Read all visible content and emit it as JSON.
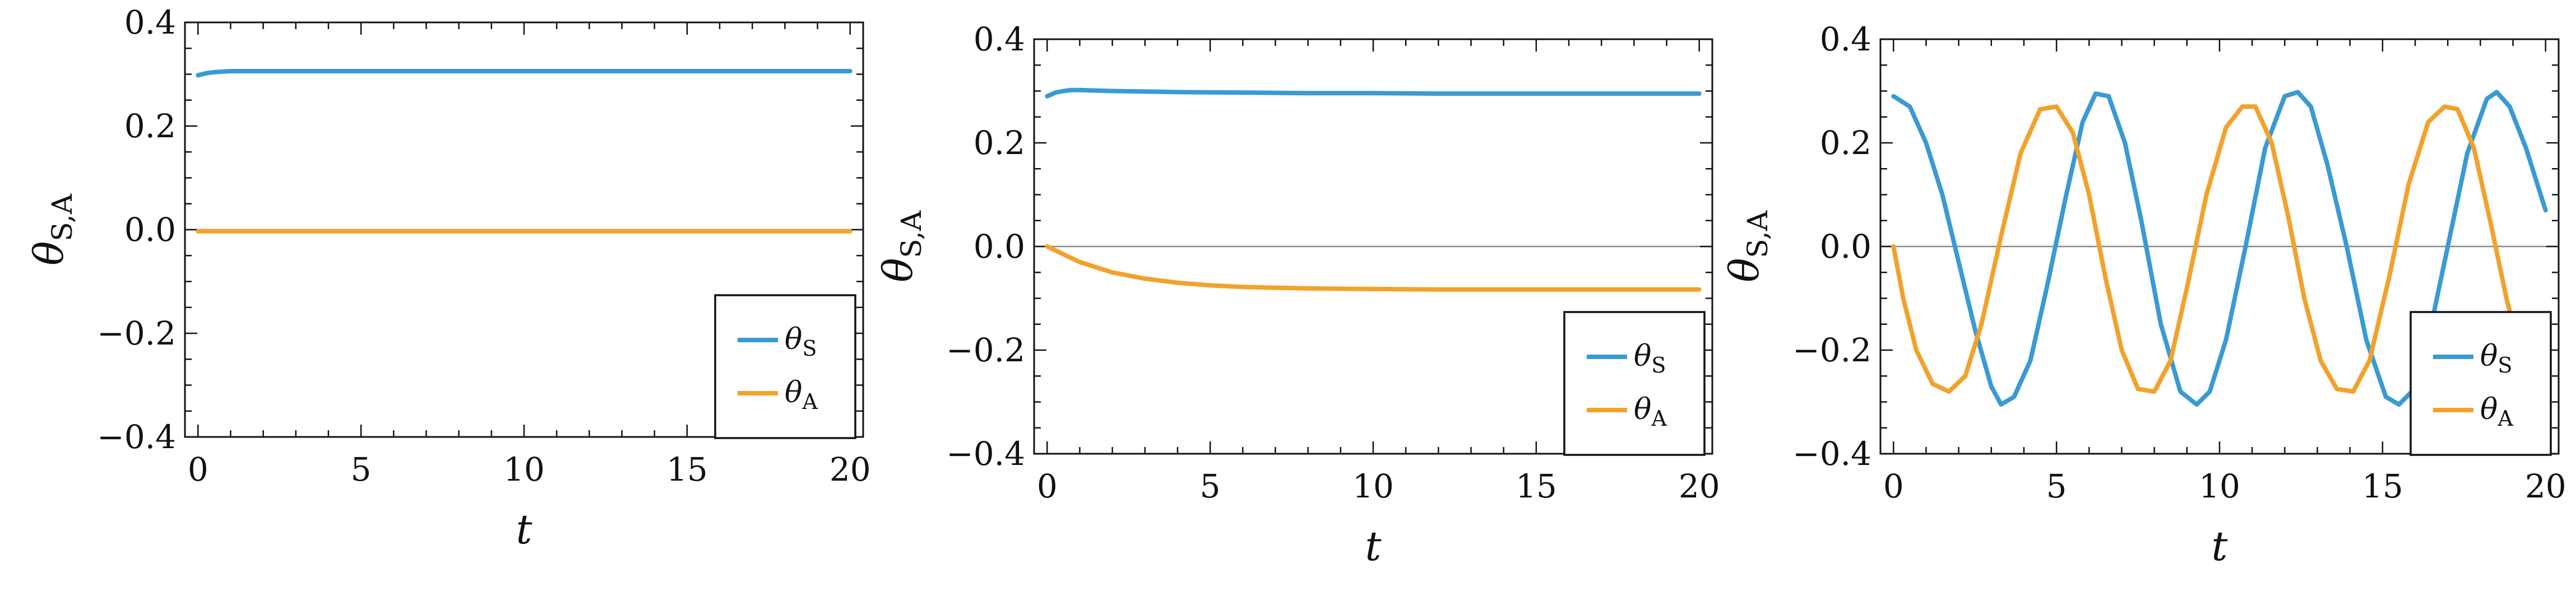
{
  "chart_data": [
    {
      "type": "line",
      "xlabel": "t",
      "ylabel": {
        "symbol": "θ",
        "subscript": "S,A"
      },
      "xlim": [
        0,
        20
      ],
      "ylim": [
        -0.4,
        0.4
      ],
      "xticks": [
        "0",
        "5",
        "10",
        "15",
        "20"
      ],
      "yticks": [
        "−0.4",
        "−0.2",
        "0.0",
        "0.2",
        "0.4"
      ],
      "legend_position": "bottom-right",
      "series": [
        {
          "name": {
            "symbol": "θ",
            "subscript": "S"
          },
          "color": "#3a9ad3",
          "x": [
            0,
            0.25,
            0.5,
            0.75,
            1,
            1.5,
            2,
            3,
            5,
            10,
            15,
            20
          ],
          "y": [
            0.298,
            0.302,
            0.304,
            0.305,
            0.306,
            0.306,
            0.306,
            0.306,
            0.306,
            0.306,
            0.306,
            0.306
          ]
        },
        {
          "name": {
            "symbol": "θ",
            "subscript": "A"
          },
          "color": "#f2a22c",
          "x": [
            0,
            5,
            10,
            15,
            20
          ],
          "y": [
            -0.003,
            -0.003,
            -0.003,
            -0.003,
            -0.003
          ]
        }
      ]
    },
    {
      "type": "line",
      "xlabel": "t",
      "ylabel": {
        "symbol": "θ",
        "subscript": "S,A"
      },
      "xlim": [
        0,
        20
      ],
      "ylim": [
        -0.4,
        0.4
      ],
      "xticks": [
        "0",
        "5",
        "10",
        "15",
        "20"
      ],
      "yticks": [
        "−0.4",
        "−0.2",
        "0.0",
        "0.2",
        "0.4"
      ],
      "legend_position": "bottom-right",
      "series": [
        {
          "name": {
            "symbol": "θ",
            "subscript": "S"
          },
          "color": "#3a9ad3",
          "x": [
            0,
            0.25,
            0.5,
            0.75,
            1,
            1.5,
            2,
            3,
            4,
            6,
            8,
            10,
            12,
            15,
            18,
            20
          ],
          "y": [
            0.29,
            0.297,
            0.3,
            0.302,
            0.302,
            0.301,
            0.3,
            0.299,
            0.298,
            0.297,
            0.296,
            0.296,
            0.295,
            0.295,
            0.295,
            0.295
          ]
        },
        {
          "name": {
            "symbol": "θ",
            "subscript": "A"
          },
          "color": "#f2a22c",
          "x": [
            0,
            0.5,
            1,
            2,
            3,
            4,
            5,
            6,
            8,
            10,
            12,
            15,
            20
          ],
          "y": [
            0,
            -0.015,
            -0.03,
            -0.05,
            -0.062,
            -0.07,
            -0.075,
            -0.078,
            -0.081,
            -0.082,
            -0.083,
            -0.083,
            -0.083
          ]
        }
      ]
    },
    {
      "type": "line",
      "xlabel": "t",
      "ylabel": {
        "symbol": "θ",
        "subscript": "S,A"
      },
      "xlim": [
        0,
        20
      ],
      "ylim": [
        -0.4,
        0.4
      ],
      "xticks": [
        "0",
        "5",
        "10",
        "15",
        "20"
      ],
      "yticks": [
        "−0.4",
        "−0.2",
        "0.0",
        "0.2",
        "0.4"
      ],
      "legend_position": "bottom-right",
      "series": [
        {
          "name": {
            "symbol": "θ",
            "subscript": "S"
          },
          "color": "#3a9ad3",
          "x": [
            0,
            0.5,
            1,
            1.5,
            2,
            2.5,
            3,
            3.3,
            3.7,
            4.2,
            4.7,
            5.3,
            5.8,
            6.2,
            6.6,
            7.1,
            7.6,
            8.2,
            8.8,
            9.3,
            9.7,
            10.2,
            10.8,
            11.4,
            12,
            12.4,
            12.8,
            13.3,
            13.9,
            14.5,
            15.1,
            15.5,
            15.9,
            16.4,
            17,
            17.6,
            18.2,
            18.5,
            18.9,
            19.4,
            20
          ],
          "y": [
            0.29,
            0.27,
            0.2,
            0.1,
            -0.03,
            -0.16,
            -0.27,
            -0.305,
            -0.29,
            -0.22,
            -0.08,
            0.1,
            0.24,
            0.295,
            0.29,
            0.2,
            0.05,
            -0.15,
            -0.28,
            -0.305,
            -0.28,
            -0.18,
            0.0,
            0.19,
            0.29,
            0.298,
            0.27,
            0.16,
            0.0,
            -0.18,
            -0.29,
            -0.305,
            -0.28,
            -0.18,
            0.0,
            0.18,
            0.285,
            0.298,
            0.27,
            0.19,
            0.07
          ]
        },
        {
          "name": {
            "symbol": "θ",
            "subscript": "A"
          },
          "color": "#f2a22c",
          "x": [
            0,
            0.3,
            0.7,
            1.2,
            1.7,
            2.2,
            2.7,
            3.3,
            3.9,
            4.5,
            5,
            5.5,
            6,
            6.5,
            7,
            7.5,
            8,
            8.5,
            9,
            9.6,
            10.2,
            10.7,
            11.1,
            11.6,
            12.1,
            12.6,
            13.1,
            13.6,
            14.1,
            14.6,
            15.2,
            15.8,
            16.4,
            16.9,
            17.3,
            17.8,
            18.3,
            18.8,
            19.2,
            19.6
          ],
          "y": [
            0,
            -0.1,
            -0.2,
            -0.265,
            -0.28,
            -0.25,
            -0.15,
            0.02,
            0.18,
            0.265,
            0.27,
            0.22,
            0.1,
            -0.06,
            -0.2,
            -0.275,
            -0.28,
            -0.22,
            -0.08,
            0.1,
            0.23,
            0.27,
            0.27,
            0.2,
            0.06,
            -0.1,
            -0.22,
            -0.275,
            -0.28,
            -0.22,
            -0.06,
            0.12,
            0.24,
            0.27,
            0.265,
            0.19,
            0.05,
            -0.1,
            -0.2,
            -0.26
          ]
        }
      ]
    }
  ]
}
